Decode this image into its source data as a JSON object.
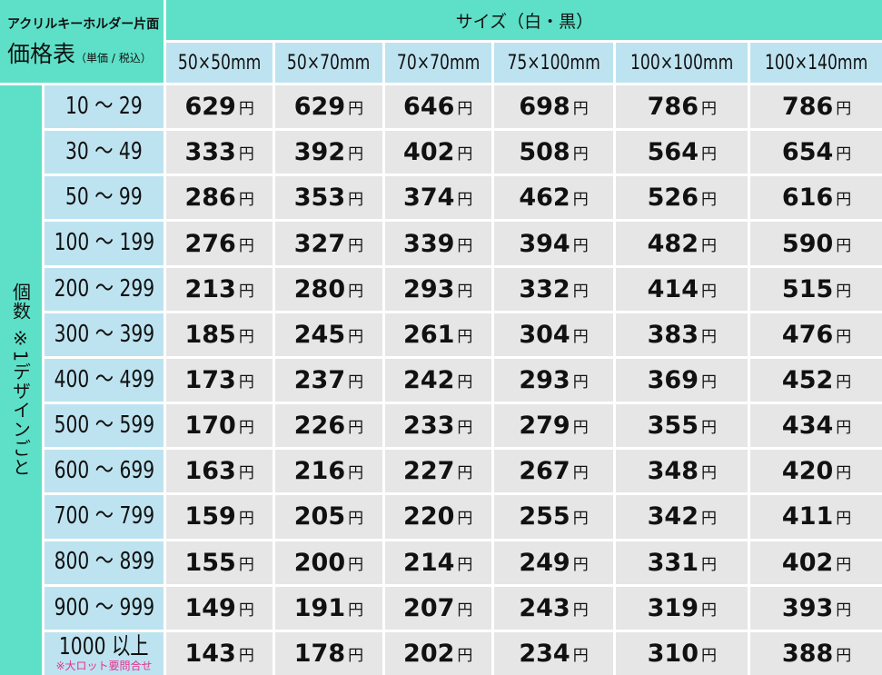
{
  "corner": {
    "product": "アクリルキーホルダー片面",
    "title": "価格表",
    "note": "（単価 / 税込）"
  },
  "size_header": "サイズ（白・黒）",
  "sizes": [
    "50×50mm",
    "50×70mm",
    "70×70mm",
    "75×100mm",
    "100×100mm",
    "100×140mm"
  ],
  "quantity_label": "個数 ※1デザインごと",
  "currency": "円",
  "rows": [
    {
      "qty": "10 ～ 29",
      "prices": [
        "629",
        "629",
        "646",
        "698",
        "786",
        "786"
      ]
    },
    {
      "qty": "30 ～ 49",
      "prices": [
        "333",
        "392",
        "402",
        "508",
        "564",
        "654"
      ]
    },
    {
      "qty": "50 ～ 99",
      "prices": [
        "286",
        "353",
        "374",
        "462",
        "526",
        "616"
      ]
    },
    {
      "qty": "100 ～ 199",
      "prices": [
        "276",
        "327",
        "339",
        "394",
        "482",
        "590"
      ]
    },
    {
      "qty": "200 ～ 299",
      "prices": [
        "213",
        "280",
        "293",
        "332",
        "414",
        "515"
      ]
    },
    {
      "qty": "300 ～ 399",
      "prices": [
        "185",
        "245",
        "261",
        "304",
        "383",
        "476"
      ]
    },
    {
      "qty": "400 ～ 499",
      "prices": [
        "173",
        "237",
        "242",
        "293",
        "369",
        "452"
      ]
    },
    {
      "qty": "500 ～ 599",
      "prices": [
        "170",
        "226",
        "233",
        "279",
        "355",
        "434"
      ]
    },
    {
      "qty": "600 ～ 699",
      "prices": [
        "163",
        "216",
        "227",
        "267",
        "348",
        "420"
      ]
    },
    {
      "qty": "700 ～ 799",
      "prices": [
        "159",
        "205",
        "220",
        "255",
        "342",
        "411"
      ]
    },
    {
      "qty": "800 ～ 899",
      "prices": [
        "155",
        "200",
        "214",
        "249",
        "331",
        "402"
      ]
    },
    {
      "qty": "900 ～ 999",
      "prices": [
        "149",
        "191",
        "207",
        "243",
        "319",
        "393"
      ]
    },
    {
      "qty": "1000 以上",
      "note": "※大ロット要問合せ",
      "prices": [
        "143",
        "178",
        "202",
        "234",
        "310",
        "388"
      ]
    }
  ],
  "colors": {
    "header": "#5ee0c8",
    "label": "#bee3f0",
    "cell": "#e6e6e6",
    "note": "#e8308a"
  }
}
